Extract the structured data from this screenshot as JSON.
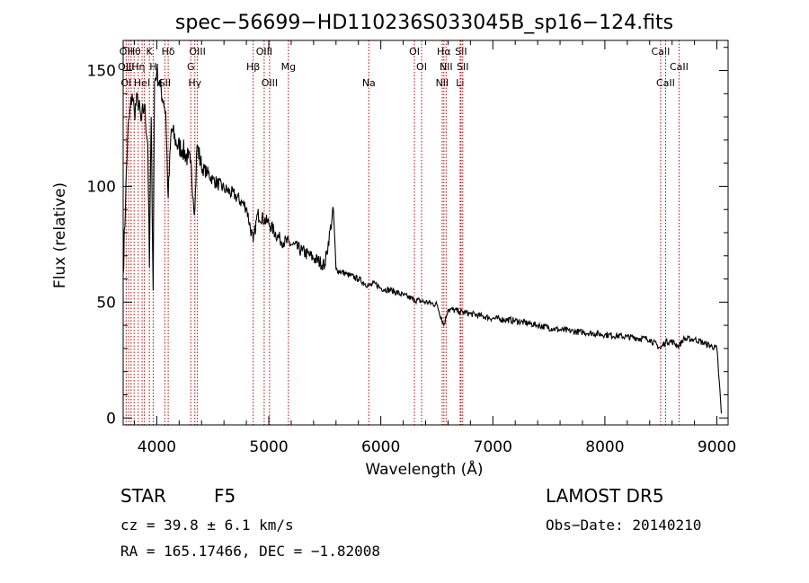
{
  "chart_data": {
    "type": "line",
    "title": "spec−56699−HD110236S033045B_sp16−124.fits",
    "xlabel": "Wavelength (Å)",
    "ylabel": "Flux (relative)",
    "xlim": [
      3700,
      9100
    ],
    "ylim": [
      -3,
      163
    ],
    "xticks": [
      4000,
      5000,
      6000,
      7000,
      8000,
      9000
    ],
    "yticks": [
      0,
      50,
      100,
      150
    ],
    "grid": false,
    "series": [
      {
        "x": [
          3700,
          3740,
          3780,
          3800,
          3830,
          3860,
          3890,
          3920,
          3934,
          3950,
          3968,
          3980,
          4000,
          4030,
          4060,
          4080,
          4102,
          4130,
          4180,
          4230,
          4280,
          4300,
          4340,
          4360,
          4400,
          4450,
          4500,
          4600,
          4700,
          4800,
          4861,
          4900,
          5000,
          5100,
          5200,
          5300,
          5400,
          5500,
          5577,
          5600,
          5700,
          5800,
          5893,
          5950,
          6000,
          6100,
          6200,
          6300,
          6400,
          6500,
          6563,
          6600,
          6700,
          6800,
          6900,
          7000,
          7200,
          7400,
          7600,
          7800,
          8000,
          8200,
          8400,
          8498,
          8542,
          8600,
          8662,
          8700,
          8800,
          8900,
          9000,
          9040
        ],
        "y": [
          62,
          122,
          140,
          132,
          138,
          128,
          135,
          118,
          65,
          130,
          55,
          145,
          150,
          143,
          137,
          132,
          95,
          125,
          118,
          116,
          112,
          110,
          90,
          118,
          108,
          106,
          103,
          99,
          96,
          91,
          76,
          88,
          84,
          77,
          75,
          72,
          69,
          66,
          90,
          64,
          62,
          60,
          57,
          58,
          56,
          55,
          53,
          51,
          50,
          49,
          40,
          47,
          46,
          45,
          44,
          43,
          42,
          40,
          38,
          37,
          36,
          35,
          34,
          30,
          33,
          33,
          31,
          34,
          34,
          32,
          30,
          2
        ]
      }
    ],
    "lines": [
      {
        "wave": 3727,
        "top": "OII",
        "mid": "OIII",
        "low": "OI"
      },
      {
        "wave": 3750,
        "top": "",
        "mid": "",
        "low": ""
      },
      {
        "wave": 3771,
        "top": "",
        "mid": "",
        "low": ""
      },
      {
        "wave": 3798,
        "top": "Hθ",
        "mid": "",
        "low": ""
      },
      {
        "wave": 3835,
        "top": "",
        "mid": "Hη",
        "low": ""
      },
      {
        "wave": 3869,
        "top": "",
        "mid": "",
        "low": "HeI"
      },
      {
        "wave": 3889,
        "top": "",
        "mid": "",
        "low": ""
      },
      {
        "wave": 3934,
        "top": "K",
        "mid": "",
        "low": ""
      },
      {
        "wave": 3968,
        "top": "",
        "mid": "H",
        "low": ""
      },
      {
        "wave": 4072,
        "top": "",
        "mid": "",
        "low": "SII"
      },
      {
        "wave": 4102,
        "top": "Hδ",
        "mid": "",
        "low": ""
      },
      {
        "wave": 4304,
        "top": "",
        "mid": "G",
        "low": ""
      },
      {
        "wave": 4340,
        "top": "",
        "mid": "",
        "low": "Hγ"
      },
      {
        "wave": 4363,
        "top": "OIII",
        "mid": "",
        "low": ""
      },
      {
        "wave": 4861,
        "top": "",
        "mid": "Hβ",
        "low": ""
      },
      {
        "wave": 4959,
        "top": "OIII",
        "mid": "",
        "low": ""
      },
      {
        "wave": 5007,
        "top": "",
        "mid": "",
        "low": "OIII"
      },
      {
        "wave": 5175,
        "top": "",
        "mid": "Mg",
        "low": ""
      },
      {
        "wave": 5893,
        "top": "",
        "mid": "",
        "low": "Na"
      },
      {
        "wave": 6300,
        "top": "OI",
        "mid": "",
        "low": ""
      },
      {
        "wave": 6364,
        "top": "",
        "mid": "OI",
        "low": ""
      },
      {
        "wave": 6548,
        "top": "",
        "mid": "",
        "low": "NII"
      },
      {
        "wave": 6563,
        "top": "Hα",
        "mid": "",
        "low": ""
      },
      {
        "wave": 6583,
        "top": "",
        "mid": "NII",
        "low": ""
      },
      {
        "wave": 6708,
        "top": "",
        "mid": "",
        "low": "Li"
      },
      {
        "wave": 6716,
        "top": "SII",
        "mid": "",
        "low": ""
      },
      {
        "wave": 6731,
        "top": "",
        "mid": "SII",
        "low": ""
      },
      {
        "wave": 8498,
        "top": "CaII",
        "mid": "",
        "low": ""
      },
      {
        "wave": 8542,
        "top": "",
        "mid": "",
        "low": "CaII"
      },
      {
        "wave": 8662,
        "top": "",
        "mid": "CaII",
        "low": ""
      }
    ]
  },
  "info": {
    "class": "STAR",
    "subclass": "F5",
    "survey": "LAMOST  DR5",
    "cz": "cz = 39.8 ± 6.1 km/s",
    "obsdate": "Obs−Date: 20140210",
    "radec": "RA = 165.17466, DEC =  −1.82008"
  }
}
